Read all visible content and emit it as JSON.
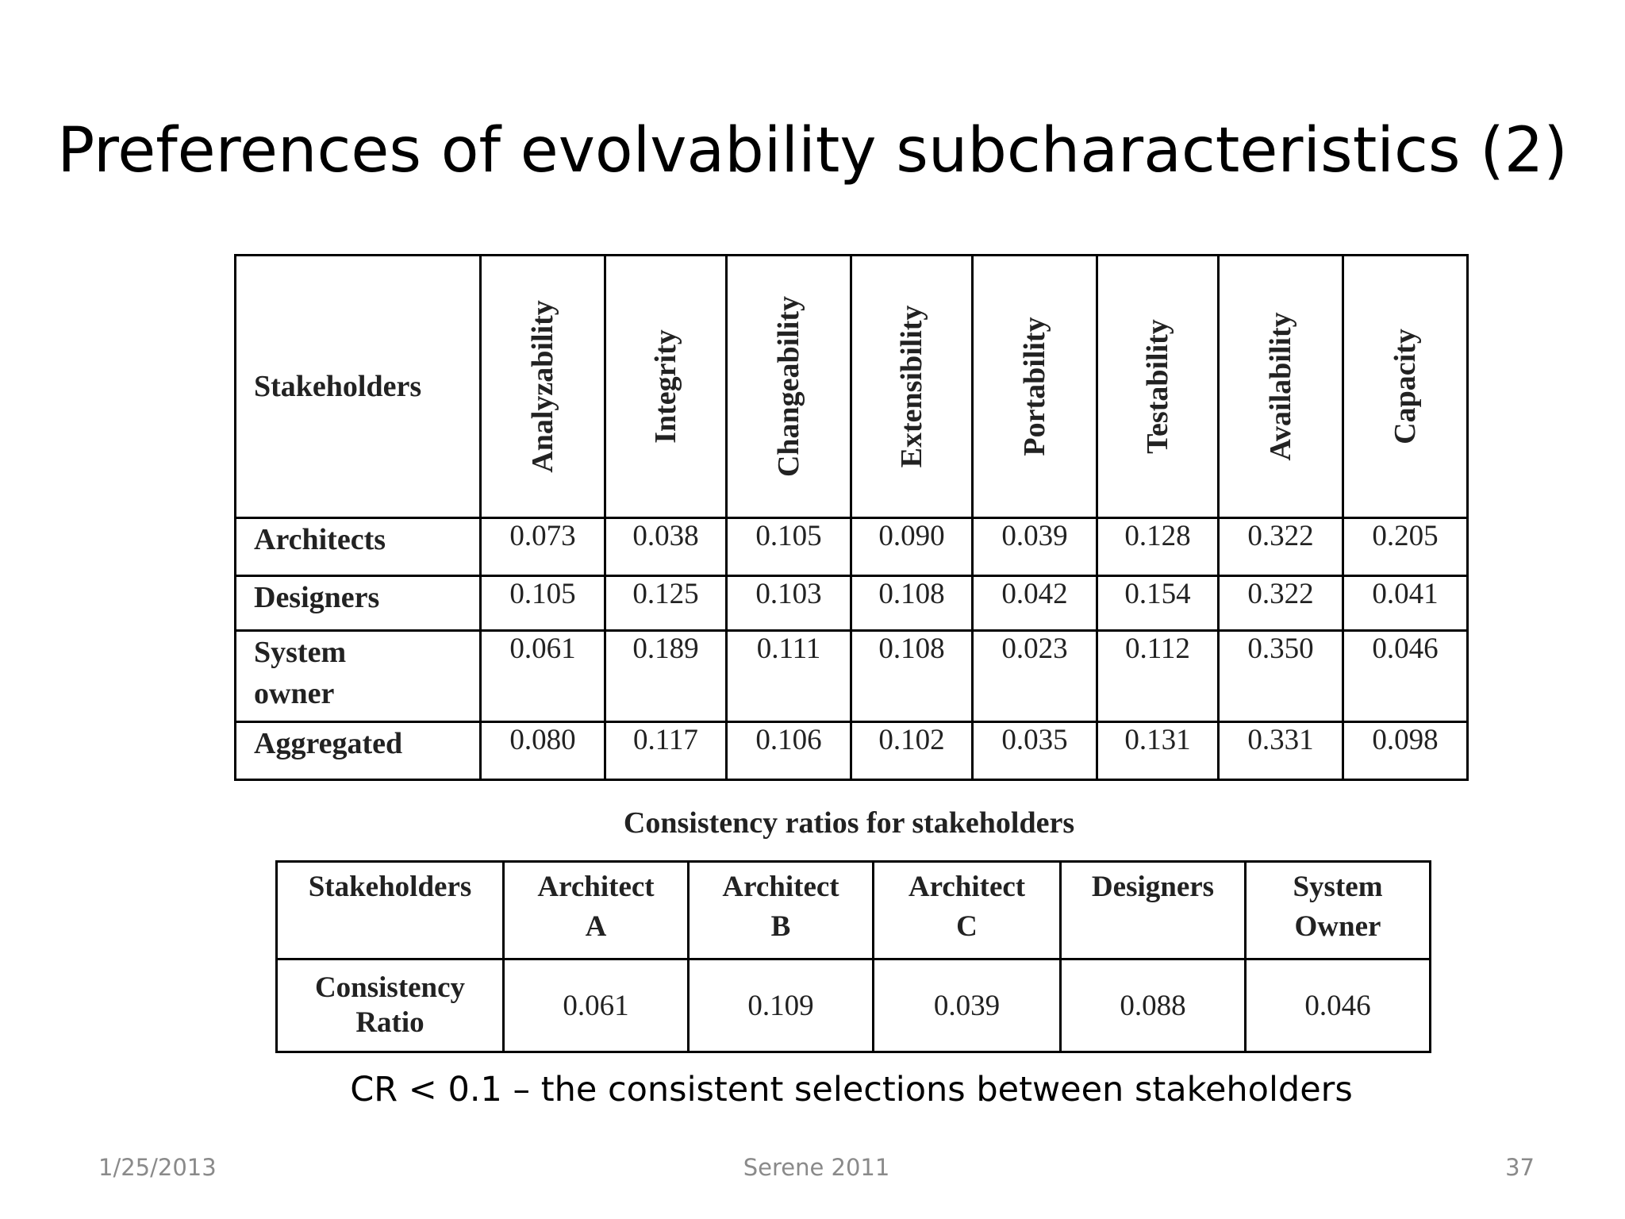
{
  "title": "Preferences of evolvability subcharacteristics (2)",
  "preferences_table": {
    "corner": "Stakeholders",
    "columns": [
      "Analyzability",
      "Integrity",
      "Changeability",
      "Extensibility",
      "Portability",
      "Testability",
      "Availability",
      "Capacity"
    ],
    "rows": [
      {
        "label": "Architects",
        "values": [
          "0.073",
          "0.038",
          "0.105",
          "0.090",
          "0.039",
          "0.128",
          "0.322",
          "0.205"
        ]
      },
      {
        "label": "Designers",
        "values": [
          "0.105",
          "0.125",
          "0.103",
          "0.108",
          "0.042",
          "0.154",
          "0.322",
          "0.041"
        ]
      },
      {
        "label_line1": "System",
        "label_line2": "owner",
        "values": [
          "0.061",
          "0.189",
          "0.111",
          "0.108",
          "0.023",
          "0.112",
          "0.350",
          "0.046"
        ]
      },
      {
        "label": "Aggregated",
        "values": [
          "0.080",
          "0.117",
          "0.106",
          "0.102",
          "0.035",
          "0.131",
          "0.331",
          "0.098"
        ]
      }
    ]
  },
  "consistency_caption": "Consistency ratios for stakeholders",
  "consistency_table": {
    "headers": [
      {
        "line1": "Stakeholders",
        "line2": ""
      },
      {
        "line1": "Architect",
        "line2": "A"
      },
      {
        "line1": "Architect",
        "line2": "B"
      },
      {
        "line1": "Architect",
        "line2": "C"
      },
      {
        "line1": "Designers",
        "line2": ""
      },
      {
        "line1": "System",
        "line2": "Owner"
      }
    ],
    "row_label_line1": "Consistency",
    "row_label_line2": "Ratio",
    "values": [
      "0.061",
      "0.109",
      "0.039",
      "0.088",
      "0.046"
    ]
  },
  "footnote": "CR < 0.1 – the consistent selections between stakeholders",
  "footer": {
    "date": "1/25/2013",
    "center": "Serene 2011",
    "page": "37"
  }
}
